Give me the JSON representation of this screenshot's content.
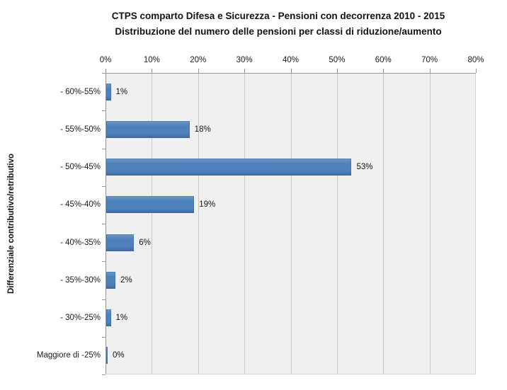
{
  "title": {
    "line1": "CTPS comparto Difesa e Sicurezza - Pensioni con decorrenza 2010 - 2015",
    "line2": "Distribuzione del numero delle pensioni per classi di riduzione/aumento"
  },
  "y_axis_title": "Differenziale contributivo/retributivo",
  "chart_data": {
    "type": "bar",
    "orientation": "horizontal",
    "title": "CTPS comparto Difesa e Sicurezza - Pensioni con decorrenza 2010 - 2015 — Distribuzione del numero delle pensioni per classi di riduzione/aumento",
    "xlabel": "",
    "ylabel": "Differenziale contributivo/retributivo",
    "categories": [
      "- 60%-55%",
      "- 55%-50%",
      "- 50%-45%",
      "- 45%-40%",
      "- 40%-35%",
      "- 35%-30%",
      "- 30%-25%",
      "Maggiore di -25%"
    ],
    "values": [
      1,
      18,
      53,
      19,
      6,
      2,
      1,
      0
    ],
    "value_labels": [
      "1%",
      "18%",
      "53%",
      "19%",
      "6%",
      "2%",
      "1%",
      "0%"
    ],
    "x_ticks": [
      "0%",
      "10%",
      "20%",
      "30%",
      "40%",
      "50%",
      "60%",
      "70%",
      "80%"
    ],
    "xlim": [
      0,
      80
    ],
    "grid": "vertical",
    "legend": "none",
    "bar_color": "#4F81BD",
    "plot_background": "#F0F0F0",
    "gridline_color": "#C9C9C9",
    "axis_line_color": "#979797"
  }
}
